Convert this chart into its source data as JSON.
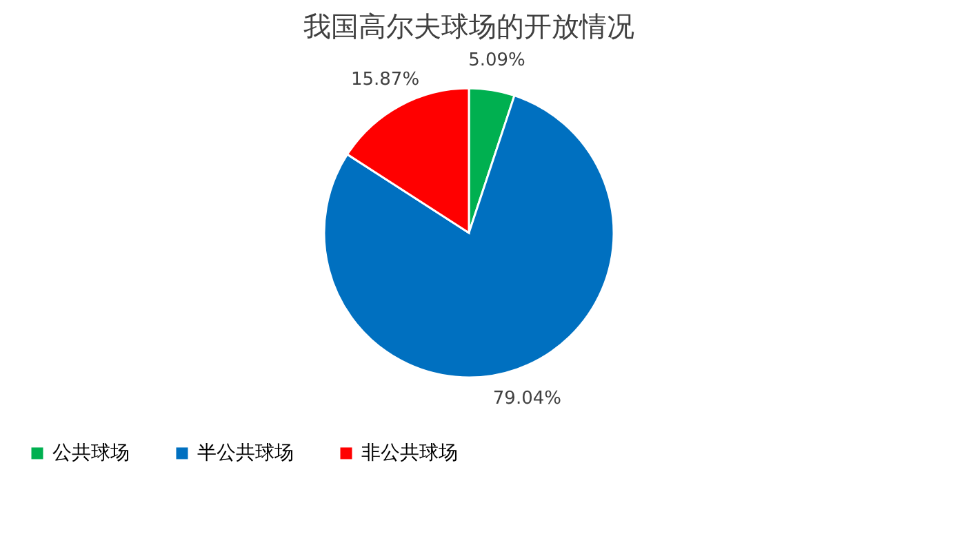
{
  "chart_data": {
    "type": "pie",
    "title": "我国高尔夫球场的开放情况",
    "categories": [
      "公共球场",
      "半公共球场",
      "非公共球场"
    ],
    "values": [
      5.09,
      79.04,
      15.87
    ],
    "colors": [
      "#00b050",
      "#0070c0",
      "#ff0000"
    ],
    "value_labels": [
      "5.09%",
      "79.04%",
      "15.87%"
    ],
    "legend": "bottom"
  }
}
